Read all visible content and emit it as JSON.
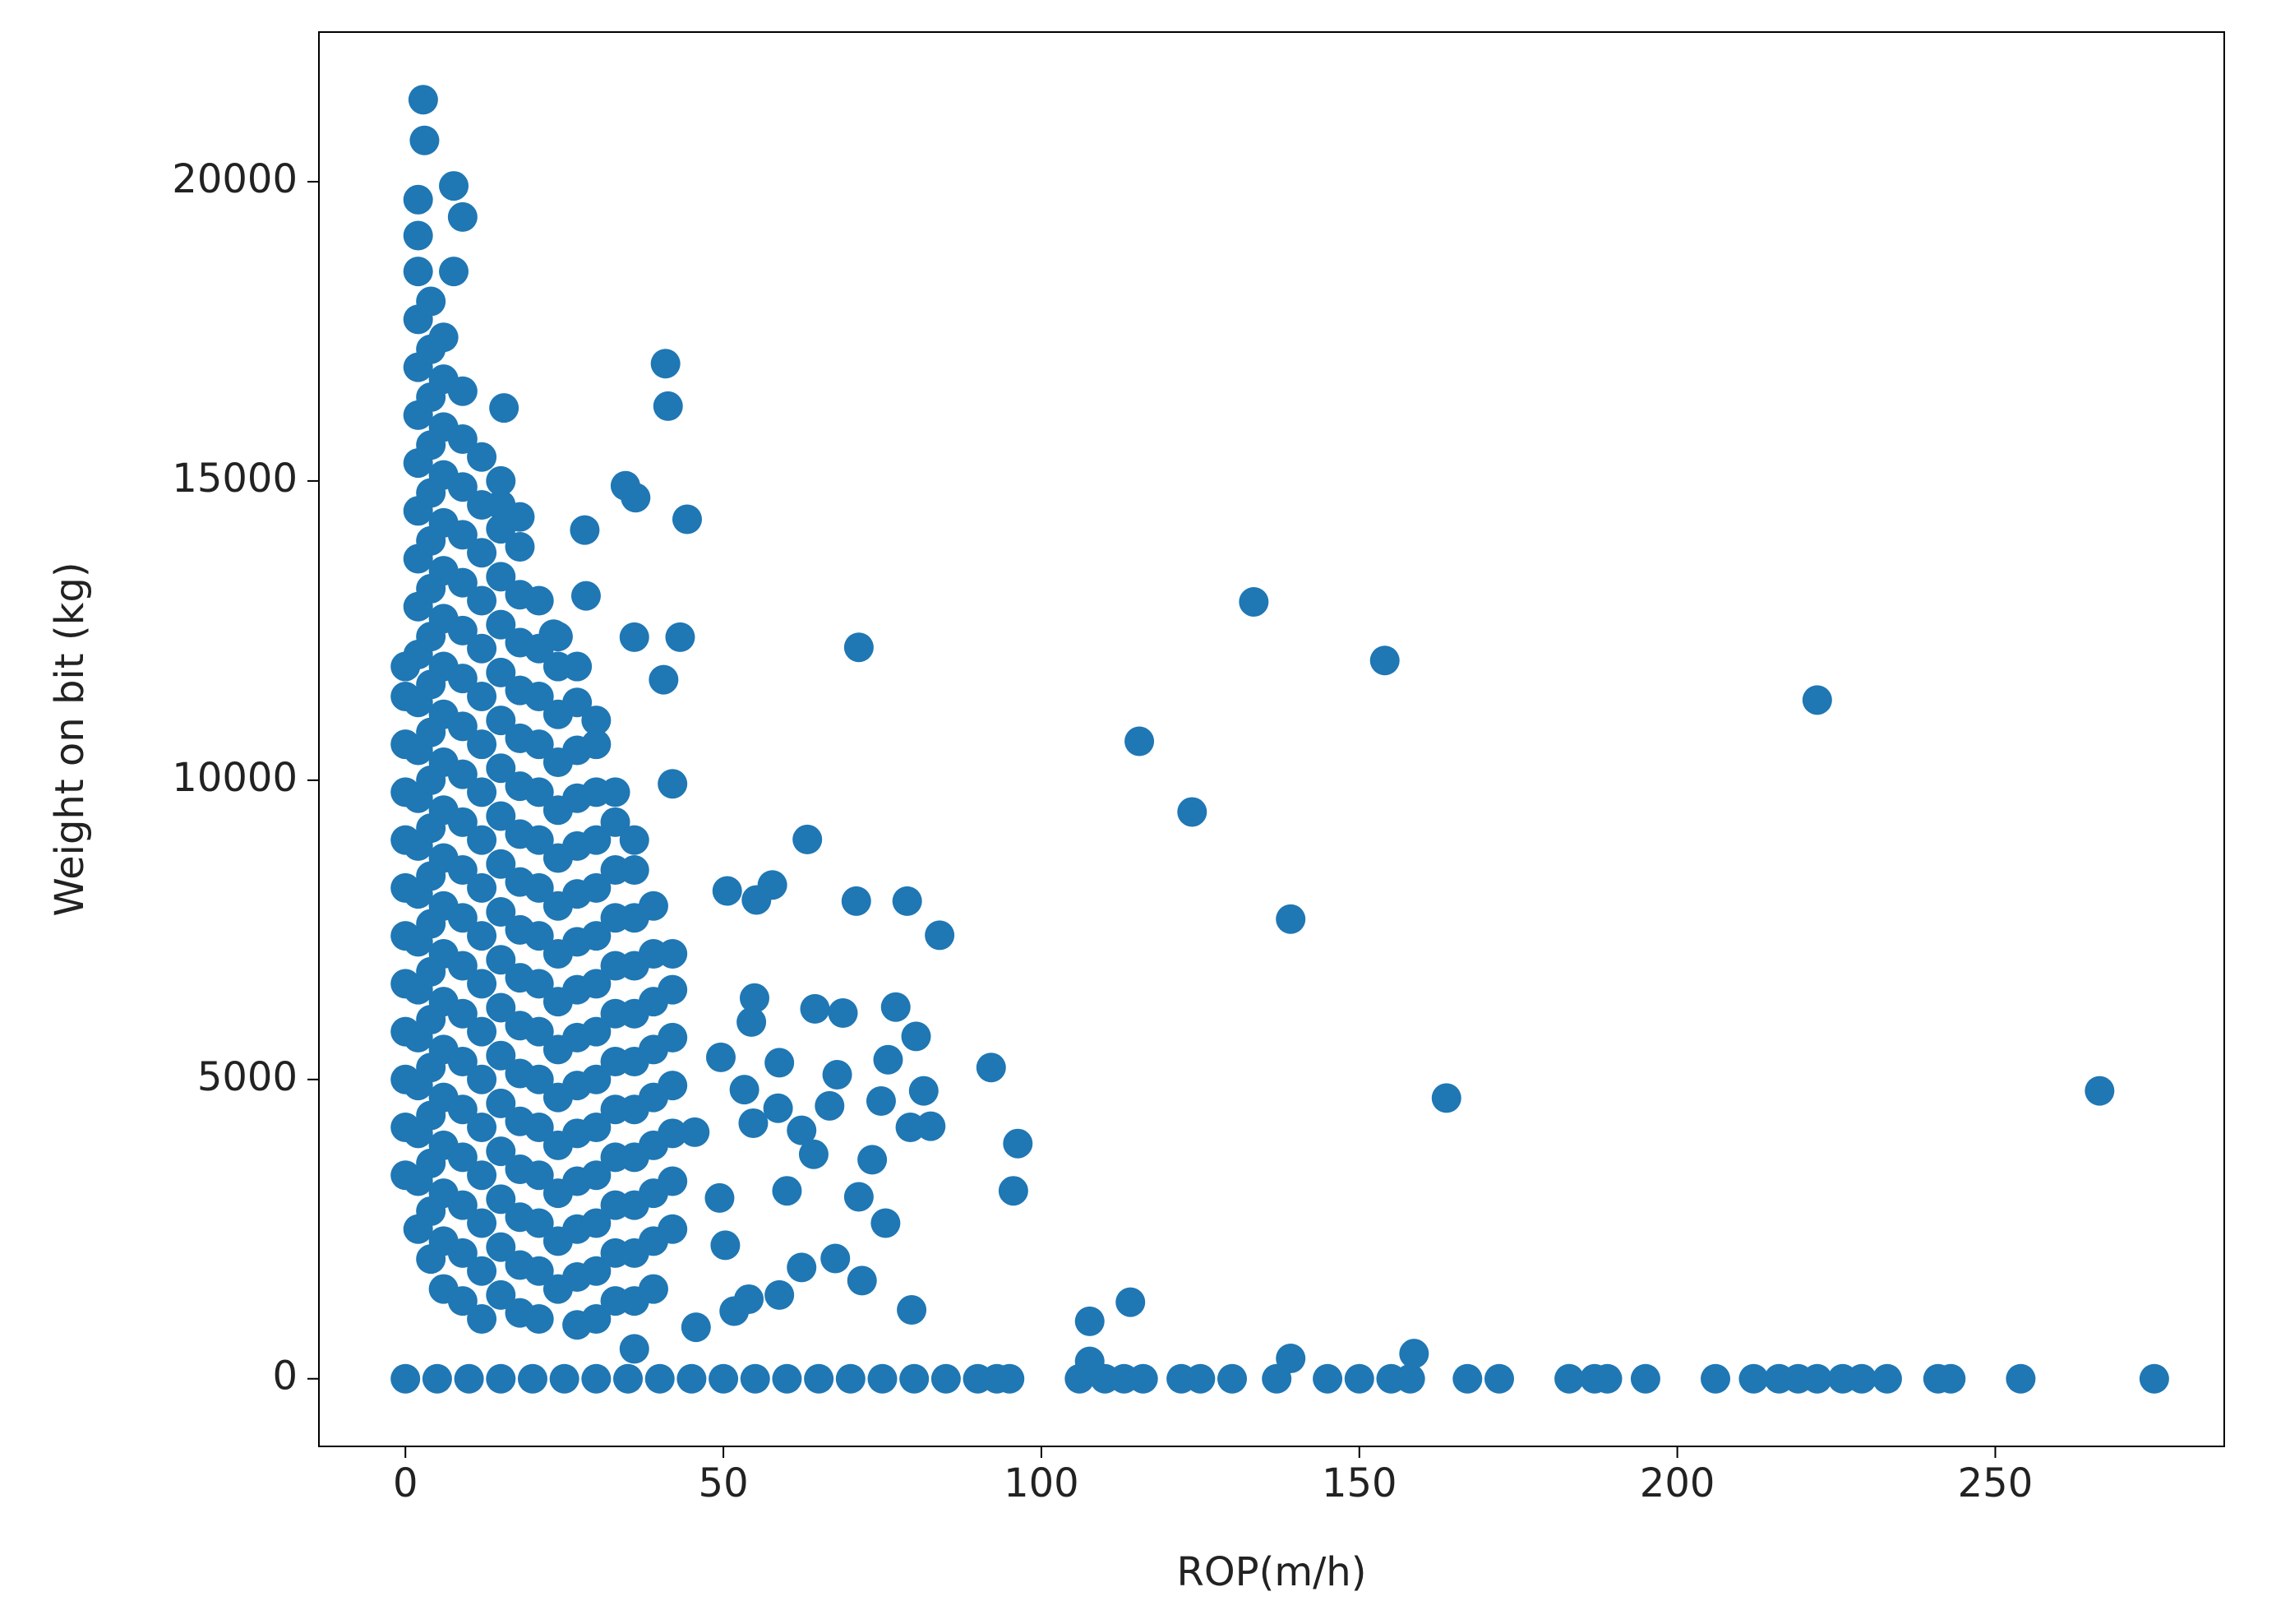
{
  "chart_data": {
    "type": "scatter",
    "x_label": "ROP(m/h)",
    "y_label": "Weight on bit (kg)",
    "color": "#1f77b4",
    "xlim": [
      -13.6,
      286
    ],
    "ylim": [
      -1130,
      22500
    ],
    "xticks": [
      0,
      50,
      100,
      150,
      200,
      250
    ],
    "yticks": [
      0,
      5000,
      10000,
      15000,
      20000
    ],
    "series": [
      {
        "x": [
          0,
          5,
          10,
          15,
          20,
          25,
          30,
          35,
          40,
          45,
          50,
          55,
          60,
          65,
          70,
          75,
          80,
          85,
          90,
          93,
          95,
          106,
          110,
          113,
          116,
          122,
          125,
          130,
          137,
          145,
          150,
          155,
          158,
          167,
          172,
          183,
          187,
          189,
          195,
          206,
          212,
          216,
          219,
          222,
          226,
          229,
          233,
          241,
          243,
          254,
          275
        ],
        "values": [
          0,
          0,
          0,
          0,
          0,
          0,
          0,
          0,
          0,
          0,
          0,
          0,
          0,
          0,
          0,
          0,
          0,
          0,
          0,
          0,
          0,
          0,
          0,
          0,
          0,
          0,
          0,
          0,
          0,
          0,
          0,
          0,
          0,
          0,
          0,
          0,
          0,
          0,
          0,
          0,
          0,
          0,
          0,
          0,
          0,
          0,
          0,
          0,
          0,
          0,
          0
        ]
      },
      {
        "x": [
          133.4,
          154,
          222,
          115.4,
          123.7,
          139.2,
          163.7,
          266.4,
          71.3,
          63.2,
          70.9,
          78.9,
          84,
          57.7,
          50.6,
          55.2,
          40.9,
          41.3,
          44.3,
          34.6,
          36.2,
          43.2,
          36,
          40.6,
          42,
          15.5,
          2.8,
          3,
          7.6,
          9,
          7.6,
          28.2,
          28.4,
          23.3,
          92.1,
          96.3,
          95.6,
          80.3,
          81.5,
          82.6,
          79.4,
          77.1,
          75.9,
          74.8,
          73.4,
          71.3,
          75.5,
          71.8,
          67.6,
          79.6,
          67.9,
          66.7,
          68.8,
          64.4,
          54.9,
          54.4,
          58.8,
          58.6,
          54.7,
          62.3,
          64.2,
          60,
          58.8,
          62.3,
          54,
          51.7,
          49.4,
          50.3,
          45.7,
          45.5,
          49.6,
          53.3,
          107.6,
          114,
          139.2,
          158.6,
          107.6
        ],
        "values": [
          12980,
          12000,
          11340,
          10650,
          9470,
          7680,
          4690,
          4810,
          12220,
          9010,
          7980,
          7980,
          7410,
          8250,
          8150,
          8000,
          16960,
          16250,
          14360,
          14920,
          14720,
          12390,
          12390,
          11680,
          9940,
          16220,
          21370,
          20690,
          19930,
          19410,
          18500,
          14180,
          13080,
          12440,
          5200,
          3930,
          3140,
          5720,
          4810,
          4220,
          4200,
          6210,
          5330,
          4640,
          3660,
          3040,
          2600,
          1640,
          2010,
          1150,
          5080,
          4560,
          6110,
          6180,
          6360,
          5960,
          5280,
          4520,
          4270,
          4150,
          3750,
          3140,
          1400,
          1860,
          1330,
          1130,
          3020,
          2230,
          860,
          4120,
          5370,
          4830,
          960,
          1280,
          340,
          420,
          290
        ]
      },
      {
        "x": [
          0,
          0,
          0,
          0,
          0,
          0,
          0,
          0,
          0,
          0,
          0,
          0
        ],
        "values": [
          3400,
          4200,
          5000,
          5800,
          6600,
          7400,
          8200,
          9000,
          9800,
          10600,
          11400,
          11900
        ]
      },
      {
        "x": [
          2,
          2,
          2,
          2,
          2,
          2,
          2,
          2,
          2,
          2,
          2,
          2,
          2,
          2,
          2,
          2,
          2,
          2,
          2,
          2,
          2,
          2,
          2
        ],
        "values": [
          2500,
          3300,
          4100,
          4900,
          5700,
          6500,
          7300,
          8100,
          8900,
          9700,
          10500,
          11300,
          12100,
          12900,
          13700,
          14500,
          15300,
          16100,
          16900,
          17700,
          18500,
          19100,
          19700
        ]
      },
      {
        "x": [
          4,
          4,
          4,
          4,
          4,
          4,
          4,
          4,
          4,
          4,
          4,
          4,
          4,
          4,
          4,
          4,
          4,
          4,
          4,
          4,
          4
        ],
        "values": [
          2000,
          2800,
          3600,
          4400,
          5200,
          6000,
          6800,
          7600,
          8400,
          9200,
          10000,
          10800,
          11600,
          12400,
          13200,
          14000,
          14800,
          15600,
          16400,
          17200,
          18000
        ]
      },
      {
        "x": [
          6,
          6,
          6,
          6,
          6,
          6,
          6,
          6,
          6,
          6,
          6,
          6,
          6,
          6,
          6,
          6,
          6,
          6,
          6,
          6,
          6
        ],
        "values": [
          1500,
          2300,
          3100,
          3900,
          4700,
          5500,
          6300,
          7100,
          7900,
          8700,
          9500,
          10300,
          11100,
          11900,
          12700,
          13500,
          14300,
          15100,
          15900,
          16700,
          17400
        ]
      },
      {
        "x": [
          9,
          9,
          9,
          9,
          9,
          9,
          9,
          9,
          9,
          9,
          9,
          9,
          9,
          9,
          9,
          9,
          9,
          9,
          9,
          9
        ],
        "values": [
          1300,
          2100,
          2900,
          3700,
          4500,
          5300,
          6100,
          6900,
          7700,
          8500,
          9300,
          10100,
          10900,
          11700,
          12500,
          13300,
          14100,
          14900,
          15700,
          16500
        ]
      },
      {
        "x": [
          12,
          12,
          12,
          12,
          12,
          12,
          12,
          12,
          12,
          12,
          12,
          12,
          12,
          12,
          12,
          12,
          12,
          12,
          12
        ],
        "values": [
          1000,
          1800,
          2600,
          3400,
          4200,
          5000,
          5800,
          6600,
          7400,
          8200,
          9000,
          9800,
          10600,
          11400,
          12200,
          13000,
          13800,
          14600,
          15400
        ]
      },
      {
        "x": [
          15,
          15,
          15,
          15,
          15,
          15,
          15,
          15,
          15,
          15,
          15,
          15,
          15,
          15,
          15,
          15,
          15,
          15,
          15
        ],
        "values": [
          1400,
          2200,
          3000,
          3800,
          4600,
          5400,
          6200,
          7000,
          7800,
          8600,
          9400,
          10200,
          11000,
          11800,
          12600,
          13400,
          14200,
          14600,
          15000
        ]
      },
      {
        "x": [
          18,
          18,
          18,
          18,
          18,
          18,
          18,
          18,
          18,
          18,
          18,
          18,
          18,
          18,
          18,
          18,
          18,
          18
        ],
        "values": [
          1100,
          1900,
          2700,
          3500,
          4300,
          5100,
          5900,
          6700,
          7500,
          8300,
          9100,
          9900,
          10700,
          11500,
          12300,
          13100,
          13900,
          14400
        ]
      },
      {
        "x": [
          21,
          21,
          21,
          21,
          21,
          21,
          21,
          21,
          21,
          21,
          21,
          21,
          21,
          21,
          21,
          21
        ],
        "values": [
          1000,
          1800,
          2600,
          3400,
          4200,
          5000,
          5800,
          6600,
          7400,
          8200,
          9000,
          9800,
          10600,
          11400,
          12200,
          13000
        ]
      },
      {
        "x": [
          24,
          24,
          24,
          24,
          24,
          24,
          24,
          24,
          24,
          24,
          24,
          24,
          24,
          24,
          24
        ],
        "values": [
          1500,
          2300,
          3100,
          3900,
          4700,
          5500,
          6300,
          7100,
          7900,
          8700,
          9500,
          10300,
          11100,
          11900,
          12400
        ]
      },
      {
        "x": [
          27,
          27,
          27,
          27,
          27,
          27,
          27,
          27,
          27,
          27,
          27,
          27,
          27,
          27,
          27
        ],
        "values": [
          900,
          1700,
          2500,
          3300,
          4100,
          4900,
          5700,
          6500,
          7300,
          8100,
          8900,
          9700,
          10500,
          11300,
          11900
        ]
      },
      {
        "x": [
          30,
          30,
          30,
          30,
          30,
          30,
          30,
          30,
          30,
          30,
          30,
          30,
          30,
          30
        ],
        "values": [
          1000,
          1800,
          2600,
          3400,
          4200,
          5000,
          5800,
          6600,
          7400,
          8200,
          9000,
          9800,
          10600,
          11000
        ]
      },
      {
        "x": [
          33,
          33,
          33,
          33,
          33,
          33,
          33,
          33,
          33,
          33,
          33,
          33
        ],
        "values": [
          1300,
          2100,
          2900,
          3700,
          4500,
          5300,
          6100,
          6900,
          7700,
          8500,
          9300,
          9800
        ]
      },
      {
        "x": [
          36,
          36,
          36,
          36,
          36,
          36,
          36,
          36,
          36,
          36,
          36,
          36
        ],
        "values": [
          500,
          1300,
          2100,
          2900,
          3700,
          4500,
          5300,
          6100,
          6900,
          7700,
          8500,
          9000
        ]
      },
      {
        "x": [
          39,
          39,
          39,
          39,
          39,
          39,
          39,
          39,
          39
        ],
        "values": [
          1500,
          2300,
          3100,
          3900,
          4700,
          5500,
          6300,
          7100,
          7900
        ]
      },
      {
        "x": [
          42,
          42,
          42,
          42,
          42,
          42,
          42
        ],
        "values": [
          2500,
          3300,
          4100,
          4900,
          5700,
          6500,
          7100
        ]
      }
    ]
  }
}
